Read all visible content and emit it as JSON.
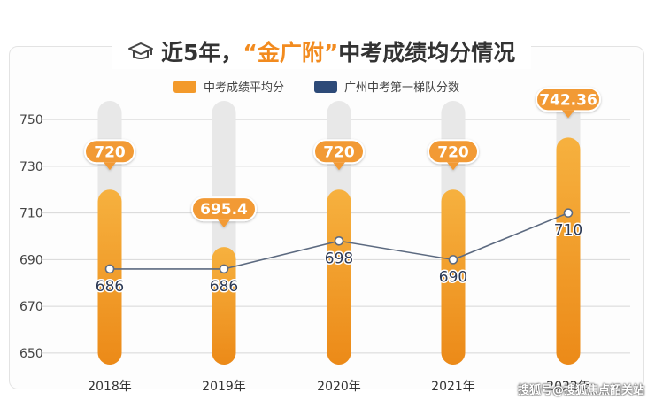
{
  "title_parts": {
    "prefix": "近5年，",
    "highlight": "“金广附”",
    "suffix": "中考成绩均分情况"
  },
  "watermark": "搜狐号@搜狐焦点韶关站",
  "colors": {
    "bar": "#f39a2b",
    "bar_dark": "#ec8a18",
    "track": "#e8e8e8",
    "line": "#5c6a80",
    "label_fill": "#f29a34"
  },
  "chart_data": {
    "type": "bar",
    "categories": [
      "2018年",
      "2019年",
      "2020年",
      "2021年",
      "2022年"
    ],
    "series": [
      {
        "name": "中考成绩平均分",
        "type": "bar",
        "color": "#f39a2b",
        "values": [
          720,
          695.4,
          720,
          720,
          742.36
        ],
        "labels": [
          "720",
          "695.4",
          "720",
          "720",
          "742.36"
        ]
      },
      {
        "name": "广州中考第一梯队分数",
        "type": "line",
        "color": "#2d4a78",
        "values": [
          686,
          686,
          698,
          690,
          710
        ],
        "labels": [
          "686",
          "686",
          "698",
          "690",
          "710"
        ]
      }
    ],
    "yticks": [
      650,
      670,
      690,
      710,
      730,
      750
    ],
    "ylim": [
      645,
      755
    ],
    "grid": true,
    "legend_position": "top"
  }
}
